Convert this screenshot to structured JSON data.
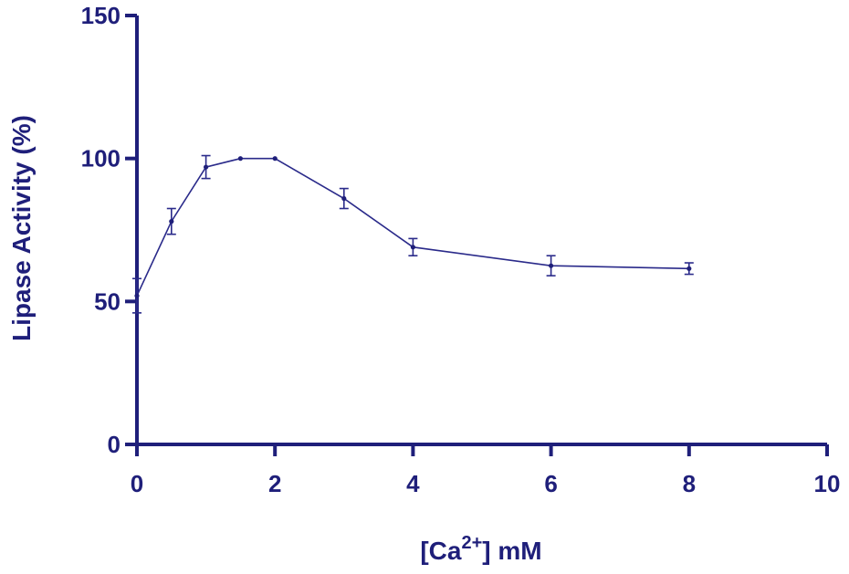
{
  "chart_data": {
    "type": "line",
    "xlabel_prefix": "[Ca",
    "xlabel_sup": "2+",
    "xlabel_suffix": "] mM",
    "ylabel": "Lipase Activity (%)",
    "xlim": [
      0,
      10
    ],
    "ylim": [
      0,
      150
    ],
    "x_ticks": [
      0,
      2,
      4,
      6,
      8,
      10
    ],
    "y_ticks": [
      0,
      50,
      100,
      150
    ],
    "grid": false,
    "color": "#1f1f7a",
    "series": [
      {
        "x": [
          0,
          0.5,
          1,
          1.5,
          2,
          3,
          4,
          6,
          8
        ],
        "y": [
          52,
          78,
          97,
          100,
          100,
          86,
          69,
          62.5,
          61.5
        ],
        "err": [
          6,
          4.5,
          4,
          0,
          0,
          3.5,
          3,
          3.5,
          2
        ]
      }
    ]
  }
}
